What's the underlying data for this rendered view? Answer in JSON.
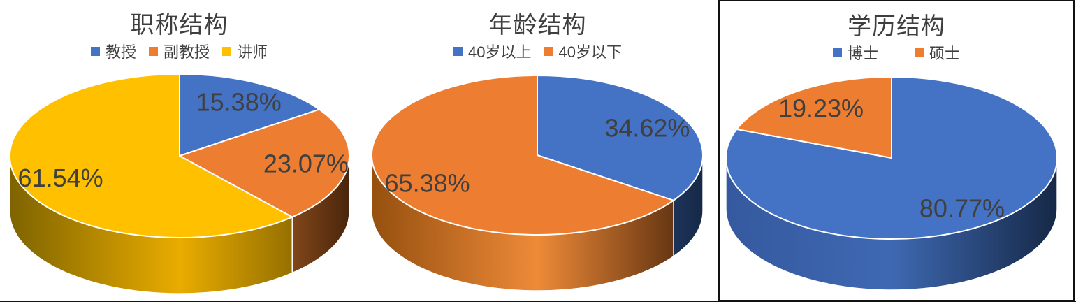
{
  "page": {
    "background": "#ffffff",
    "frame_color": "#121212",
    "text_color": "#404040",
    "divider_color": "#ffffff"
  },
  "chart_data": [
    {
      "type": "pie",
      "variant": "3d",
      "title": "职称结构",
      "labels": [
        "教授",
        "副教授",
        "讲师"
      ],
      "values": [
        15.38,
        23.07,
        61.54
      ],
      "display_values": [
        "15.38%",
        "23.07%",
        "61.54%"
      ],
      "unit": "%",
      "colors": [
        "#4472C4",
        "#ED7D31",
        "#FFC000"
      ],
      "rim_gradients": [
        [
          "#35599F",
          "#3E69B2",
          "#162847"
        ],
        [
          "#95500F",
          "#EE8A38",
          "#4A250B"
        ],
        [
          "#7E6300",
          "#E9AC00",
          "#6B5200"
        ]
      ],
      "legend_position": "top",
      "start_angle_deg": 0,
      "direction": "clockwise"
    },
    {
      "type": "pie",
      "variant": "3d",
      "title": "年龄结构",
      "labels": [
        "40岁以上",
        "40岁以下"
      ],
      "values": [
        34.62,
        65.38
      ],
      "display_values": [
        "34.62%",
        "65.38%"
      ],
      "unit": "%",
      "colors": [
        "#4472C4",
        "#ED7D31"
      ],
      "rim_gradients": [
        [
          "#35599F",
          "#3E69B2",
          "#162847"
        ],
        [
          "#95500F",
          "#EE8A38",
          "#4A250B"
        ]
      ],
      "legend_position": "top",
      "start_angle_deg": 0,
      "direction": "clockwise"
    },
    {
      "type": "pie",
      "variant": "3d",
      "title": "学历结构",
      "labels": [
        "博士",
        "硕士"
      ],
      "values": [
        80.77,
        19.23
      ],
      "display_values": [
        "80.77%",
        "19.23%"
      ],
      "unit": "%",
      "colors": [
        "#4472C4",
        "#ED7D31"
      ],
      "rim_gradients": [
        [
          "#35599F",
          "#3E69B2",
          "#162847"
        ],
        [
          "#95500F",
          "#EE8A38",
          "#4A250B"
        ]
      ],
      "legend_position": "top",
      "start_angle_deg": 0,
      "direction": "clockwise"
    }
  ]
}
